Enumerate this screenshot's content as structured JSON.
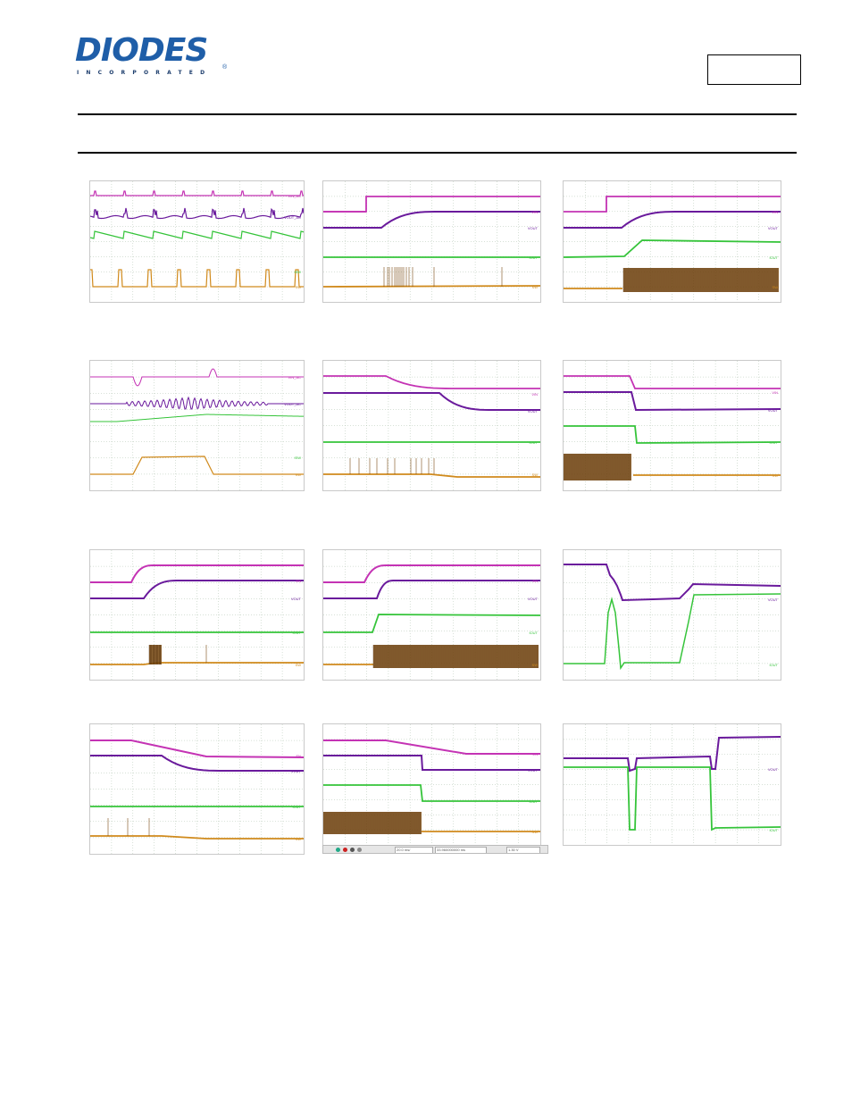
{
  "header": {
    "logo_text": "DIODES",
    "logo_subtext": "INCORPORATED",
    "logo_reg": "®"
  },
  "colors": {
    "magenta": "#c433b4",
    "purple": "#6a1a9c",
    "green": "#35c43a",
    "orange": "#d08a1c",
    "brown": "#7a4a12",
    "grid": "#9ab39a",
    "logo_blue": "#1f5ea8"
  },
  "scopes": [
    {
      "id": "s1",
      "labels": [
        "VIN_AC",
        "VOUT_AC",
        "",
        "ISW",
        "SW"
      ]
    },
    {
      "id": "s2",
      "labels": [
        "VIN",
        "VOUT",
        "IOUT",
        "SW"
      ]
    },
    {
      "id": "s3",
      "labels": [
        "VIN",
        "VOUT",
        "IOUT",
        "SW"
      ]
    },
    {
      "id": "s4",
      "labels": [
        "VIN_AC",
        "VOUT_AC",
        "",
        "ISW",
        "SW"
      ]
    },
    {
      "id": "s5",
      "labels": [
        "VIN",
        "VOUT",
        "IOUT",
        "SW"
      ]
    },
    {
      "id": "s6",
      "labels": [
        "VIN",
        "VOUT",
        "IOUT",
        "SW"
      ]
    },
    {
      "id": "s7",
      "labels": [
        "EN",
        "VOUT",
        "IOUT",
        "SW"
      ]
    },
    {
      "id": "s8",
      "labels": [
        "EN",
        "VOUT",
        "IOUT",
        "SW"
      ]
    },
    {
      "id": "s9",
      "labels": [
        "VOUT",
        "IOUT"
      ]
    },
    {
      "id": "s10",
      "labels": [
        "EN",
        "VOUT",
        "IOUT",
        "SW"
      ]
    },
    {
      "id": "s11",
      "labels": [
        "EN",
        "VOUT",
        "IOUT",
        "SW"
      ]
    },
    {
      "id": "s12",
      "labels": [
        "VOUT",
        "IOUT"
      ]
    }
  ],
  "toolbar": {
    "timebase": "20.0 ms/",
    "delay": "33.960000000 ms",
    "trigger": "1.30 V"
  }
}
